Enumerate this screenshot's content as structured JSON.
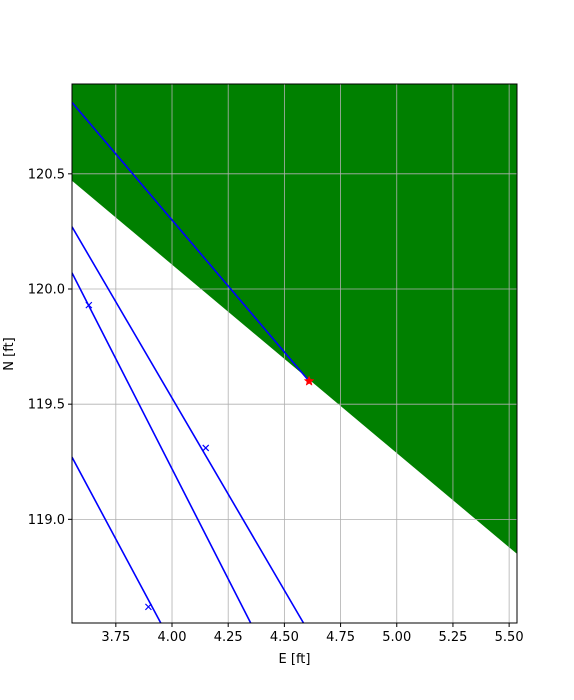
{
  "chart_data": {
    "type": "line",
    "title": "",
    "xlabel": "E [ft]",
    "ylabel": "N [ft]",
    "xlim": [
      3.555,
      5.535
    ],
    "ylim": [
      118.55,
      120.89
    ],
    "xticks": [
      3.75,
      4.0,
      4.25,
      4.5,
      4.75,
      5.0,
      5.25,
      5.5
    ],
    "xtick_labels": [
      "3.75",
      "4.00",
      "4.25",
      "4.50",
      "4.75",
      "5.00",
      "5.25",
      "5.50"
    ],
    "yticks": [
      119.0,
      119.5,
      120.0,
      120.5
    ],
    "ytick_labels": [
      "119.0",
      "119.5",
      "120.0",
      "120.5"
    ],
    "grid": true,
    "legend": "none",
    "region": {
      "type": "area",
      "color": "#008000",
      "boundary": [
        [
          3.555,
          120.47
        ],
        [
          5.535,
          118.85
        ]
      ],
      "fill": "above"
    },
    "series": [
      {
        "color": "#0000ff",
        "x": [
          3.555,
          4.61
        ],
        "y": [
          120.81,
          119.6
        ]
      },
      {
        "color": "#0000ff",
        "x": [
          3.555,
          4.585
        ],
        "y": [
          120.27,
          118.55
        ]
      },
      {
        "color": "#0000ff",
        "x": [
          3.555,
          4.35
        ],
        "y": [
          120.07,
          118.55
        ]
      },
      {
        "color": "#0000ff",
        "x": [
          3.555,
          3.95
        ],
        "y": [
          119.27,
          118.55
        ]
      }
    ],
    "markers": [
      {
        "x": 3.63,
        "y": 119.93,
        "shape": "x",
        "color": "#0000ff"
      },
      {
        "x": 4.15,
        "y": 119.31,
        "shape": "x",
        "color": "#0000ff"
      },
      {
        "x": 3.895,
        "y": 118.62,
        "shape": "x",
        "color": "#0000ff"
      },
      {
        "x": 4.61,
        "y": 119.6,
        "shape": "star",
        "color": "#ff0000"
      }
    ]
  }
}
